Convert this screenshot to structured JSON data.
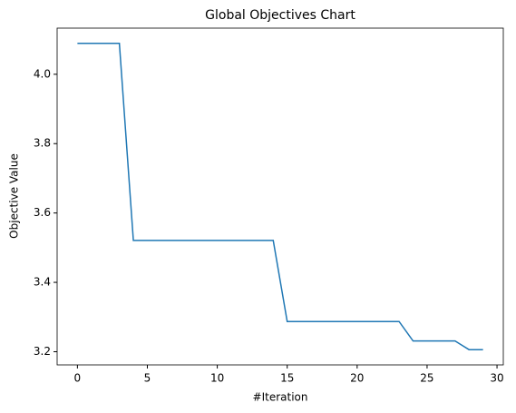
{
  "chart_data": {
    "type": "line",
    "title": "Global Objectives Chart",
    "x_label": "#Iteration",
    "y_label": "Objective Value",
    "x": [
      0,
      1,
      2,
      3,
      4,
      5,
      6,
      7,
      8,
      9,
      10,
      11,
      12,
      13,
      14,
      15,
      16,
      17,
      18,
      19,
      20,
      21,
      22,
      23,
      24,
      25,
      26,
      27,
      28,
      29
    ],
    "series": [
      {
        "color": "#1f77b4",
        "values": [
          4.089,
          4.089,
          4.089,
          4.089,
          3.521,
          3.521,
          3.521,
          3.521,
          3.521,
          3.521,
          3.521,
          3.521,
          3.521,
          3.521,
          3.521,
          3.287,
          3.287,
          3.287,
          3.287,
          3.287,
          3.287,
          3.287,
          3.287,
          3.287,
          3.231,
          3.231,
          3.231,
          3.231,
          3.206,
          3.206
        ]
      }
    ],
    "xlim": [
      -1.45,
      30.45
    ],
    "ylim": [
      3.162,
      4.133
    ],
    "xticks": [
      0,
      5,
      10,
      15,
      20,
      25,
      30
    ],
    "yticks": [
      3.2,
      3.4,
      3.6,
      3.8,
      {
        "value": 4,
        "label": "4.0"
      }
    ],
    "grid": false
  }
}
